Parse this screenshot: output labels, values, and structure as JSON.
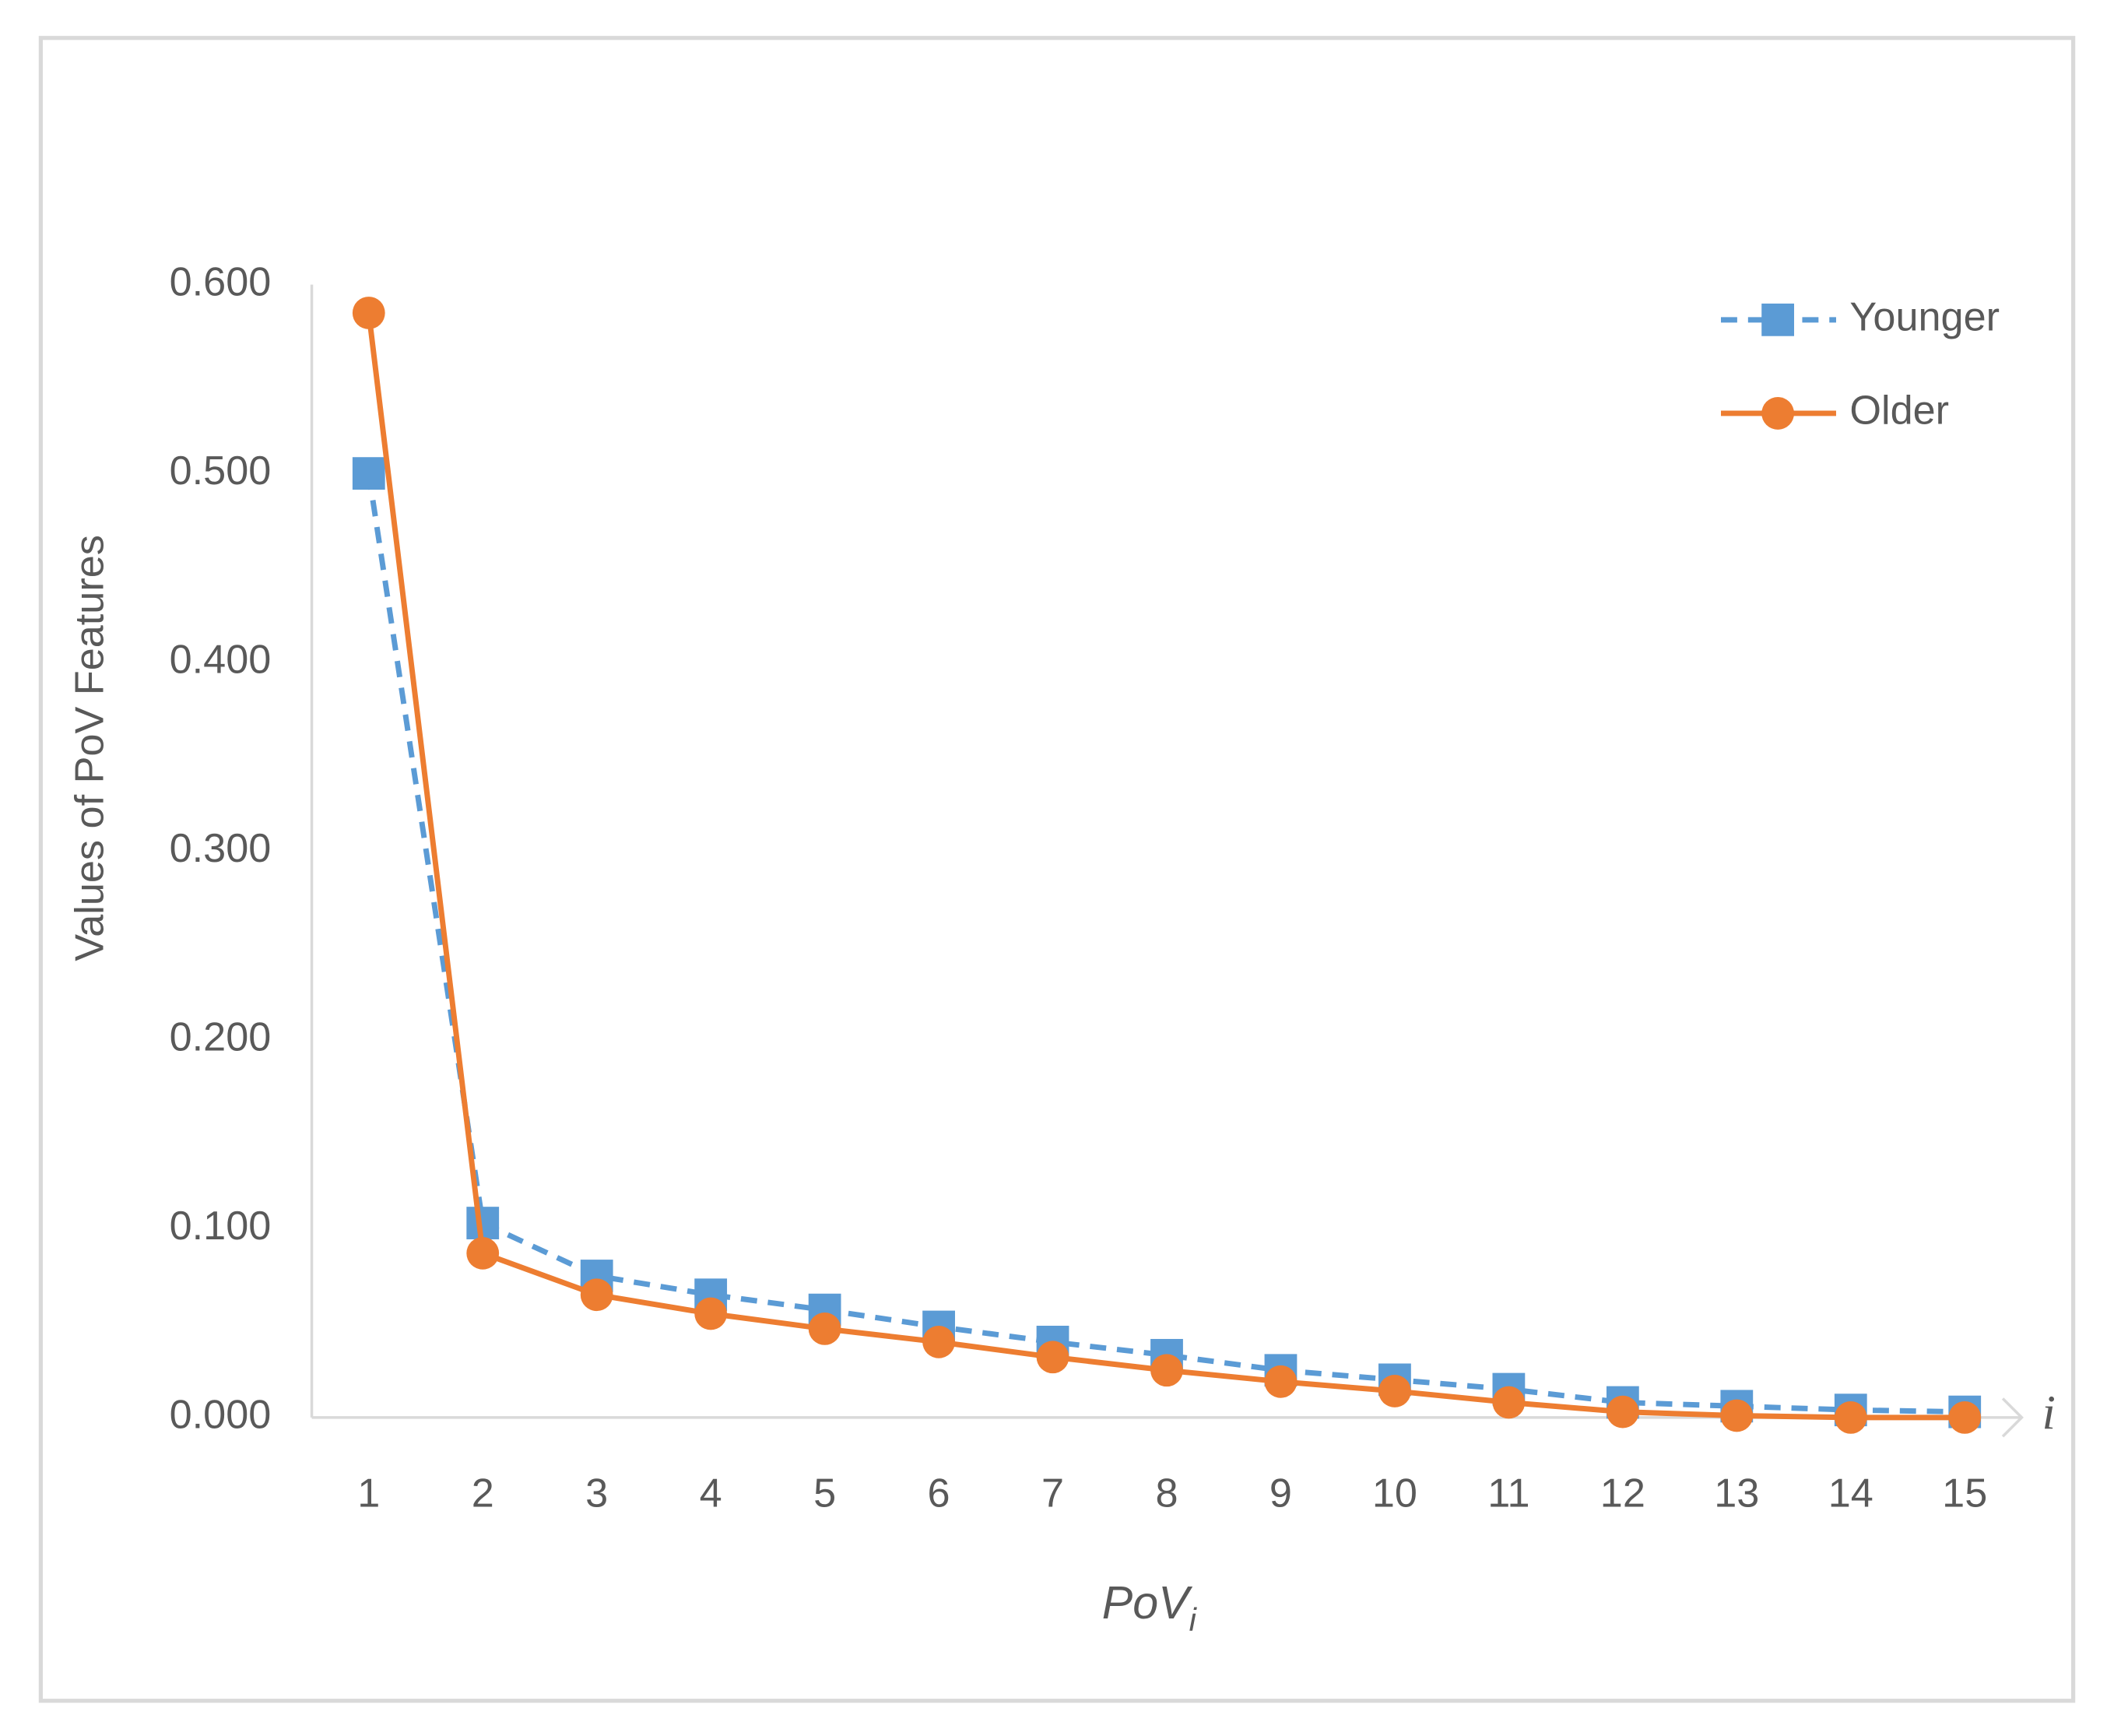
{
  "chart_data": {
    "type": "line",
    "y_label": "Values of PoV Features",
    "x_label": "PoV",
    "x_label_subscript": "i",
    "x_axis_symbol": "i",
    "categories": [
      "1",
      "2",
      "3",
      "4",
      "5",
      "6",
      "7",
      "8",
      "9",
      "10",
      "11",
      "12",
      "13",
      "14",
      "15"
    ],
    "series": [
      {
        "name": "Younger",
        "color": "#5b9bd5",
        "dash": true,
        "marker": "square",
        "values": [
          0.5,
          0.103,
          0.075,
          0.065,
          0.057,
          0.048,
          0.04,
          0.033,
          0.025,
          0.02,
          0.015,
          0.008,
          0.006,
          0.004,
          0.003
        ]
      },
      {
        "name": "Older",
        "color": "#ed7d31",
        "dash": false,
        "marker": "circle",
        "values": [
          0.585,
          0.087,
          0.065,
          0.055,
          0.047,
          0.04,
          0.032,
          0.025,
          0.019,
          0.014,
          0.008,
          0.003,
          0.001,
          0.0,
          0.0
        ]
      }
    ],
    "ylim": [
      0,
      0.6
    ],
    "yticks": [
      {
        "value": 0,
        "label": "0.000"
      },
      {
        "value": 0.1,
        "label": "0.100"
      },
      {
        "value": 0.2,
        "label": "0.200"
      },
      {
        "value": 0.3,
        "label": "0.300"
      },
      {
        "value": 0.4,
        "label": "0.400"
      },
      {
        "value": 0.5,
        "label": "0.500"
      },
      {
        "value": 0.6,
        "label": "0.600"
      }
    ],
    "grid": false,
    "legend": "top-right"
  }
}
